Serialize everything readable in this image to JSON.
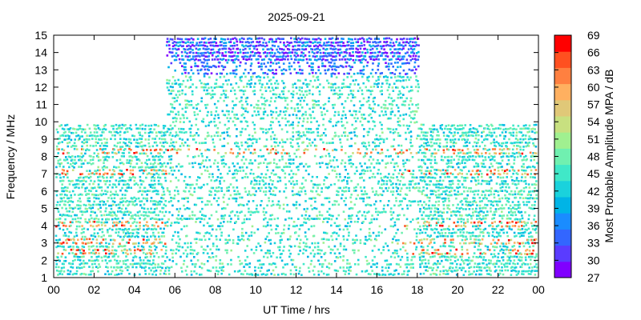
{
  "chart_data": {
    "type": "heatmap",
    "title": "2025-09-21",
    "xlabel": "UT Time / hrs",
    "ylabel": "Frequency / MHz",
    "colorbar_label": "Most Probable Amplitude MPA / dB",
    "xlim": [
      0,
      24
    ],
    "ylim": [
      1,
      15
    ],
    "x_ticks": [
      "00",
      "02",
      "04",
      "06",
      "08",
      "10",
      "12",
      "14",
      "16",
      "18",
      "20",
      "22",
      "00"
    ],
    "y_ticks": [
      "1",
      "2",
      "3",
      "4",
      "5",
      "6",
      "7",
      "8",
      "9",
      "10",
      "11",
      "12",
      "13",
      "14",
      "15"
    ],
    "colorbar_ticks": [
      "27",
      "30",
      "33",
      "36",
      "39",
      "42",
      "45",
      "48",
      "51",
      "54",
      "57",
      "60",
      "63",
      "66",
      "69"
    ],
    "colorbar_range": [
      27,
      69
    ],
    "colorbar_colors": [
      "#8000ff",
      "#5a3cff",
      "#3366ff",
      "#1a8cff",
      "#00b4e6",
      "#1ad2dc",
      "#40e8c8",
      "#70f0b0",
      "#a0f090",
      "#c8e080",
      "#e0c878",
      "#ffb060",
      "#ff8040",
      "#ff5020",
      "#ff0000"
    ],
    "background_band_max_mhz": {
      "night_1": 9.9,
      "day": 15,
      "night_2": 9.9
    },
    "strong_bands_mhz": [
      2.6,
      3.2,
      4.1,
      7.2,
      8.4
    ]
  }
}
